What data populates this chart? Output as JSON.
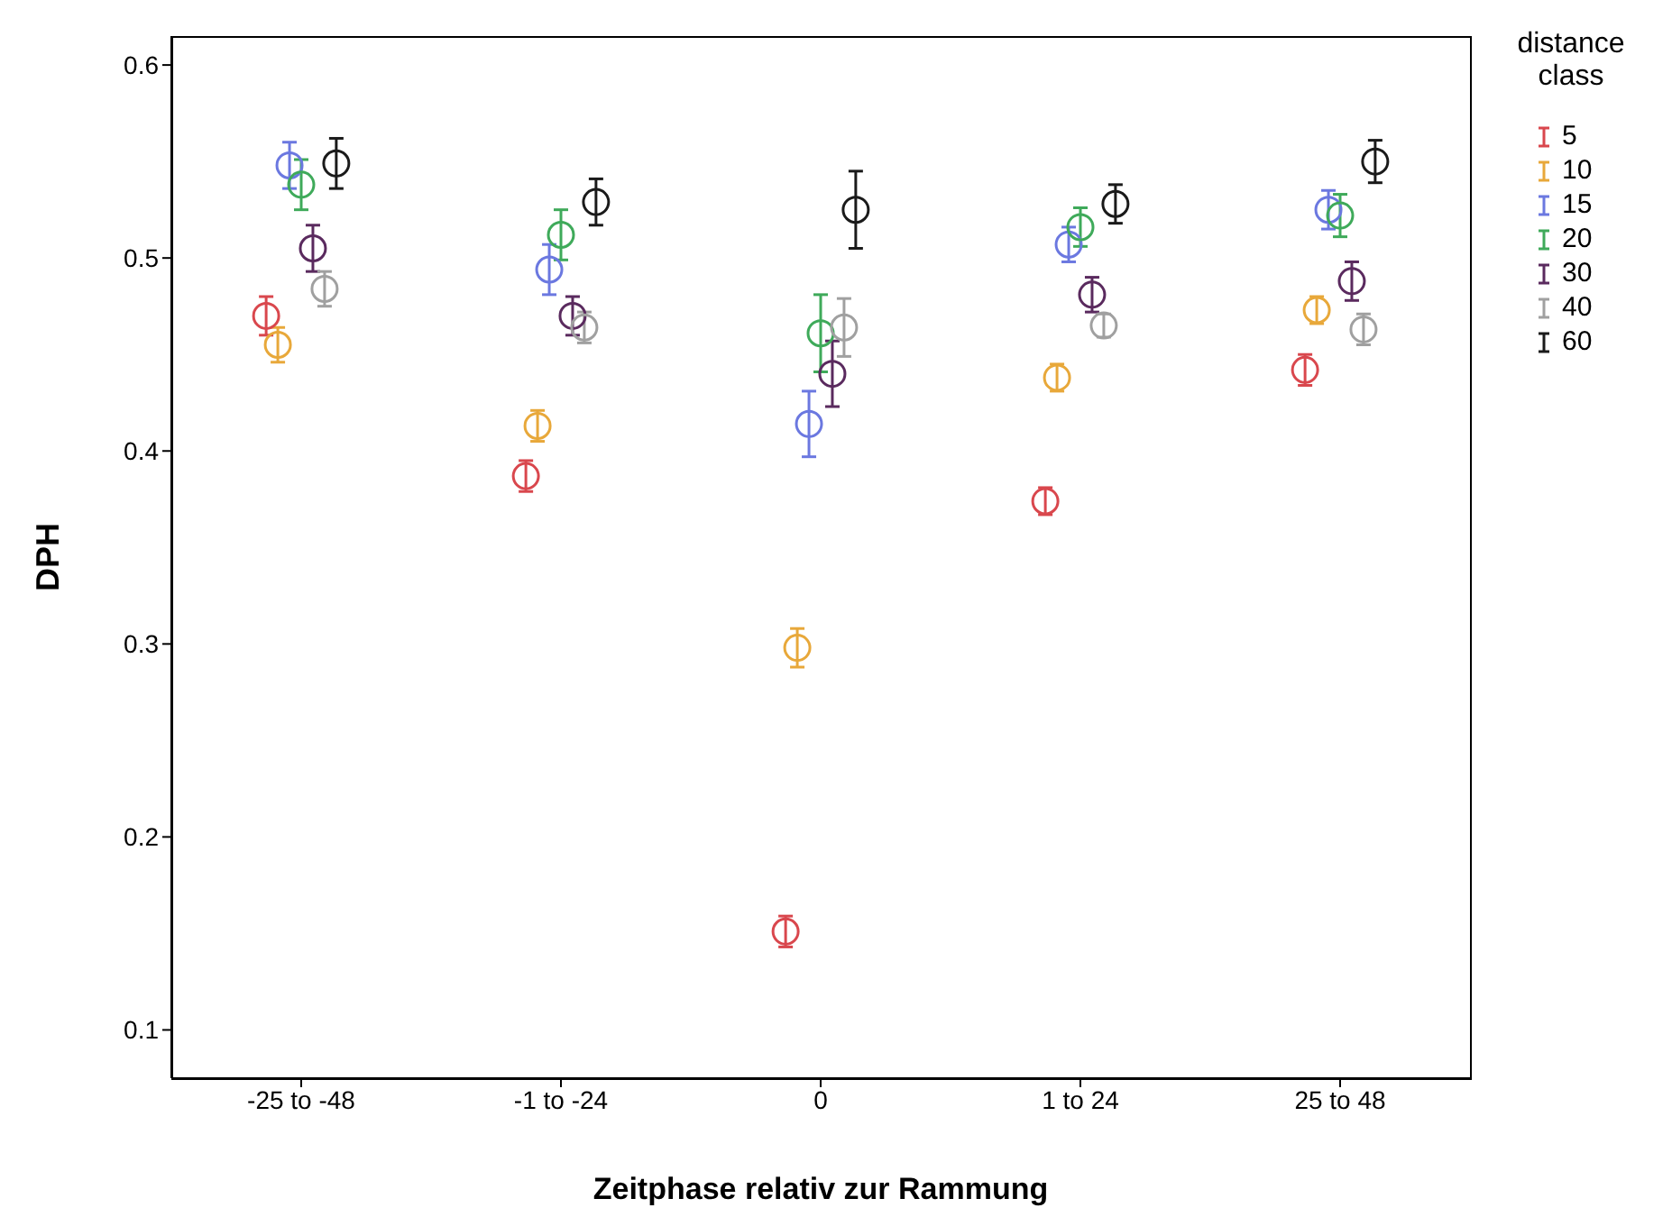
{
  "chart_data": {
    "type": "scatter",
    "xlabel": "Zeitphase relativ zur Rammung",
    "ylabel": "DPH",
    "legend_title": "distance class",
    "legend": "right",
    "marker": "circle",
    "grid": false,
    "categories": [
      "-25 to -48",
      "-1 to -24",
      "0",
      "1 to 24",
      "25 to 48"
    ],
    "ylim": [
      0.075,
      0.615
    ],
    "yticks": [
      0.1,
      0.2,
      0.3,
      0.4,
      0.5,
      0.6
    ],
    "series": [
      {
        "name": "5",
        "color": "#d9474d",
        "values": [
          0.47,
          0.387,
          0.151,
          0.374,
          0.442
        ],
        "errors": [
          0.01,
          0.008,
          0.008,
          0.007,
          0.008
        ]
      },
      {
        "name": "10",
        "color": "#e8a83a",
        "values": [
          0.455,
          0.413,
          0.298,
          0.438,
          0.473
        ],
        "errors": [
          0.009,
          0.008,
          0.01,
          0.007,
          0.007
        ]
      },
      {
        "name": "15",
        "color": "#6b78e0",
        "values": [
          0.548,
          0.494,
          0.414,
          0.507,
          0.525
        ],
        "errors": [
          0.012,
          0.013,
          0.017,
          0.009,
          0.01
        ]
      },
      {
        "name": "20",
        "color": "#3faa5a",
        "values": [
          0.538,
          0.512,
          0.461,
          0.516,
          0.522
        ],
        "errors": [
          0.013,
          0.013,
          0.02,
          0.01,
          0.011
        ]
      },
      {
        "name": "30",
        "color": "#5a2a5e",
        "values": [
          0.505,
          0.47,
          0.44,
          0.481,
          0.488
        ],
        "errors": [
          0.012,
          0.01,
          0.017,
          0.009,
          0.01
        ]
      },
      {
        "name": "40",
        "color": "#a0a0a0",
        "values": [
          0.484,
          0.464,
          0.464,
          0.465,
          0.463
        ],
        "errors": [
          0.009,
          0.008,
          0.015,
          0.006,
          0.008
        ]
      },
      {
        "name": "60",
        "color": "#1a1a1a",
        "values": [
          0.549,
          0.529,
          0.525,
          0.528,
          0.55
        ],
        "errors": [
          0.013,
          0.012,
          0.02,
          0.01,
          0.011
        ]
      }
    ]
  }
}
